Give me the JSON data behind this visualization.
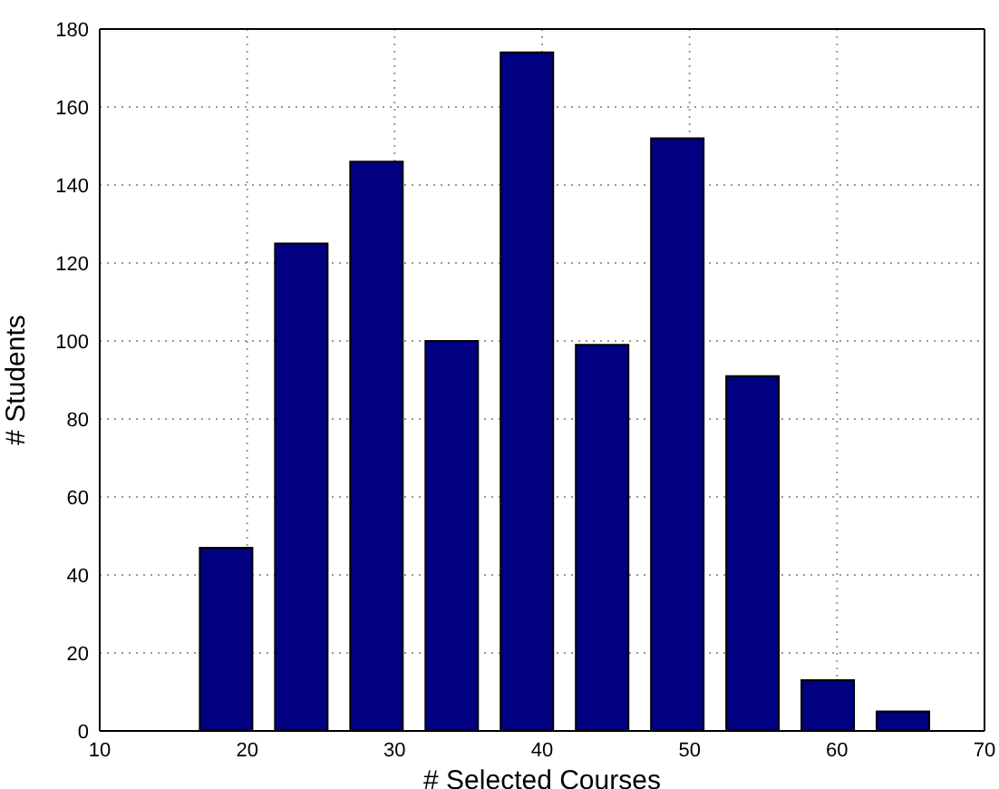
{
  "chart_data": {
    "type": "bar",
    "xlabel": "# Selected Courses",
    "ylabel": "# Students",
    "x": [
      18.6,
      23.7,
      28.8,
      33.9,
      39.0,
      44.1,
      49.2,
      54.3,
      59.4,
      64.5
    ],
    "values": [
      47,
      125,
      146,
      100,
      174,
      99,
      152,
      91,
      13,
      5
    ],
    "color": "#000080",
    "xlim": [
      10,
      70
    ],
    "xticks": [
      10,
      20,
      30,
      40,
      50,
      60,
      70
    ],
    "ylim": [
      0,
      180
    ],
    "yticks": [
      0,
      20,
      40,
      60,
      80,
      100,
      120,
      140,
      160,
      180
    ],
    "grid": true
  }
}
